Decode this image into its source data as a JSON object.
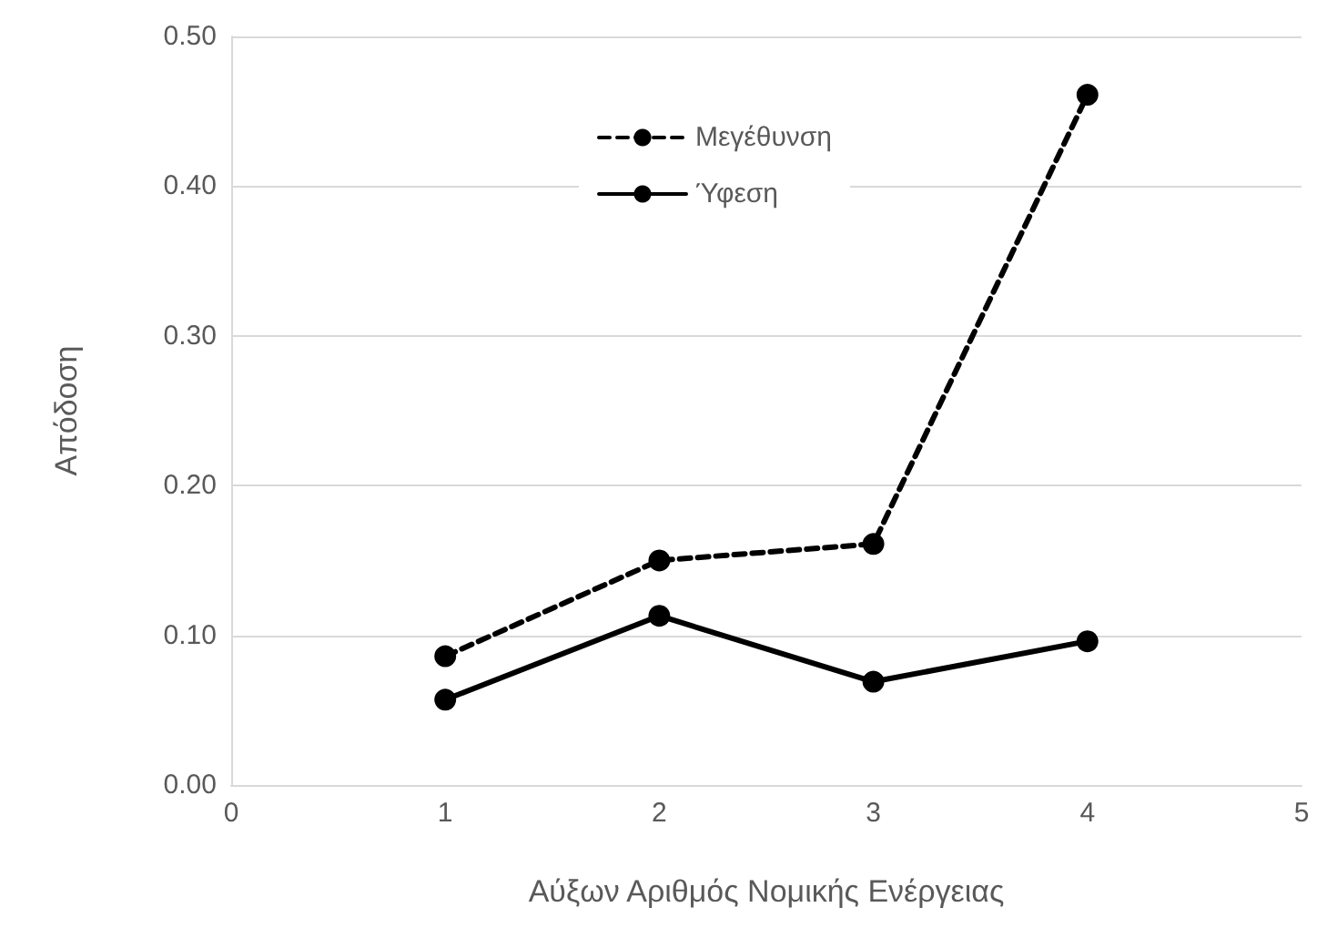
{
  "chart_data": {
    "type": "line",
    "xlabel": "Αύξων Αριθμός Νομικής Ενέργειας",
    "ylabel": "Απόδοση",
    "x": [
      1,
      2,
      3,
      4
    ],
    "series": [
      {
        "name": "Μεγέθυνση",
        "color": "#000000",
        "line_style": "dashed",
        "values": [
          0.086,
          0.15,
          0.161,
          0.461
        ]
      },
      {
        "name": "Ύφεση",
        "color": "#000000",
        "line_style": "solid",
        "values": [
          0.057,
          0.113,
          0.069,
          0.096
        ]
      }
    ],
    "xlim": [
      0,
      5
    ],
    "xticks": [
      0,
      1,
      2,
      3,
      4,
      5
    ],
    "ylim": [
      0,
      0.5
    ],
    "yticks": [
      {
        "value": 0,
        "label": "0.00"
      },
      {
        "value": 0.1,
        "label": "0.10"
      },
      {
        "value": 0.2,
        "label": "0.20"
      },
      {
        "value": 0.3,
        "label": "0.30"
      },
      {
        "value": 0.4,
        "label": "0.40"
      },
      {
        "value": 0.5,
        "label": "0.50"
      }
    ],
    "grid": "y",
    "legend": "top",
    "marker": "circle"
  }
}
